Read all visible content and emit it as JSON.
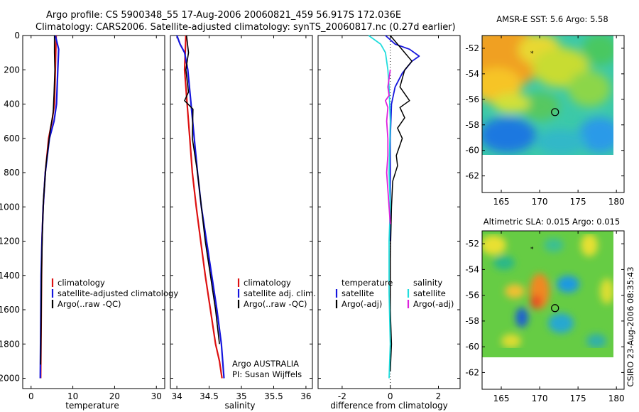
{
  "header": {
    "line1": "Argo profile: CS 5900348_55 17-Aug-2006 20060821_459 56.917S 172.036E",
    "line2": "Climatology: CARS2006. Satellite-adjusted climatology: synTS_20060817.nc (0.27d earlier)"
  },
  "side_stamp": "CSIRO 23-Aug-2006 08:35:43",
  "chart_data": [
    {
      "id": "temperature",
      "type": "line",
      "xlabel": "temperature",
      "xlim": [
        -2,
        32
      ],
      "ylim": [
        0,
        2060
      ],
      "xticks": [
        0,
        10,
        20,
        30
      ],
      "yticks": [
        0,
        200,
        400,
        600,
        800,
        1000,
        1200,
        1400,
        1600,
        1800,
        2000
      ],
      "legend": [
        "climatology",
        "satellite-adjusted climatology",
        "Argo(..raw -QC)"
      ],
      "series": [
        {
          "name": "climatology",
          "color": "#dd1111",
          "width": 2.2,
          "x": [
            6.0,
            5.9,
            5.8,
            5.6,
            5.0,
            4.2,
            3.4,
            2.9,
            2.6,
            2.5,
            2.4,
            2.3
          ],
          "y": [
            0,
            100,
            200,
            400,
            500,
            600,
            800,
            1000,
            1200,
            1400,
            1700,
            2000
          ]
        },
        {
          "name": "satellite-adjusted climatology",
          "color": "#1515dd",
          "width": 2.2,
          "x": [
            5.8,
            6.6,
            6.4,
            6.1,
            5.5,
            4.4,
            3.4,
            2.9,
            2.6,
            2.4,
            2.3,
            2.2
          ],
          "y": [
            0,
            80,
            200,
            400,
            500,
            600,
            800,
            1000,
            1200,
            1400,
            1700,
            2000
          ]
        },
        {
          "name": "Argo(..raw -QC)",
          "color": "#000000",
          "width": 1.6,
          "x": [
            5.6,
            5.6,
            5.7,
            5.5,
            5.3,
            4.6,
            3.6,
            3.0,
            2.7,
            2.5,
            2.4,
            2.3
          ],
          "y": [
            0,
            100,
            200,
            340,
            450,
            550,
            750,
            950,
            1150,
            1400,
            1700,
            1920
          ]
        }
      ]
    },
    {
      "id": "salinity",
      "type": "line",
      "xlabel": "salinity",
      "xlim": [
        33.9,
        36.1
      ],
      "ylim": [
        0,
        2060
      ],
      "xticks": [
        34,
        34.5,
        35,
        35.5,
        36
      ],
      "legend": [
        "climatology",
        "satellite adj. clim.",
        "Argo(..raw -QC)"
      ],
      "annotations": [
        "Argo AUSTRALIA",
        "PI: Susan Wijffels"
      ],
      "series": [
        {
          "name": "climatology",
          "color": "#dd1111",
          "width": 2.2,
          "x": [
            34.14,
            34.12,
            34.16,
            34.2,
            34.24,
            34.3,
            34.37,
            34.44,
            34.52,
            34.6,
            34.66,
            34.7
          ],
          "y": [
            0,
            200,
            400,
            600,
            800,
            1000,
            1200,
            1400,
            1600,
            1800,
            1900,
            2000
          ]
        },
        {
          "name": "satellite adj. clim.",
          "color": "#1515dd",
          "width": 2.2,
          "x": [
            34.0,
            34.05,
            34.12,
            34.17,
            34.22,
            34.27,
            34.32,
            34.38,
            34.46,
            34.54,
            34.62,
            34.69,
            34.73
          ],
          "y": [
            0,
            50,
            100,
            200,
            400,
            600,
            800,
            1000,
            1200,
            1400,
            1600,
            1800,
            2000
          ]
        },
        {
          "name": "Argo(..raw -QC)",
          "color": "#000000",
          "width": 1.6,
          "x": [
            34.15,
            34.18,
            34.14,
            34.18,
            34.12,
            34.25,
            34.24,
            34.32,
            34.38,
            34.44,
            34.52,
            34.6,
            34.66
          ],
          "y": [
            0,
            100,
            200,
            330,
            380,
            430,
            600,
            800,
            1000,
            1200,
            1400,
            1600,
            1800
          ]
        }
      ]
    },
    {
      "id": "difference",
      "type": "line",
      "xlabel": "difference from climatology",
      "xlim": [
        -3.0,
        2.9
      ],
      "ylim": [
        0,
        2060
      ],
      "xticks": [
        -2,
        0,
        2
      ],
      "legend_temperature": [
        "temperature",
        "satellite",
        "Argo(-adj)"
      ],
      "legend_salinity": [
        "salinity",
        "satellite",
        "Argo(-adj)"
      ],
      "series": [
        {
          "name": "temperature satellite",
          "color": "#1515dd",
          "width": 1.8,
          "x": [
            -0.2,
            0.2,
            0.8,
            1.2,
            0.9,
            0.5,
            0.2,
            0.05,
            0,
            0,
            0
          ],
          "y": [
            0,
            50,
            80,
            120,
            150,
            220,
            300,
            400,
            600,
            900,
            1200
          ]
        },
        {
          "name": "temperature Argo(-adj)",
          "color": "#000000",
          "width": 1.5,
          "x": [
            0.0,
            0.3,
            0.6,
            0.9,
            0.6,
            0.4,
            0.8,
            0.4,
            0.6,
            0.3,
            0.5,
            0.25,
            0.3,
            0.1,
            0.05,
            0.0,
            0.0,
            0.05,
            0.0
          ],
          "y": [
            0,
            50,
            100,
            150,
            200,
            300,
            380,
            420,
            480,
            540,
            600,
            700,
            760,
            850,
            1000,
            1300,
            1600,
            1800,
            1960
          ]
        },
        {
          "name": "salinity satellite",
          "color": "#22dddd",
          "width": 1.8,
          "x": [
            -0.9,
            -0.4,
            -0.2,
            -0.1,
            -0.05,
            0.0,
            -0.05,
            0.0,
            -0.05,
            -0.05,
            0.0,
            -0.05
          ],
          "y": [
            0,
            50,
            100,
            200,
            300,
            500,
            800,
            1000,
            1200,
            1500,
            1800,
            2000
          ]
        },
        {
          "name": "salinity Argo(-adj)",
          "color": "#dd22dd",
          "width": 1.8,
          "x": [
            0.0,
            -0.1,
            -0.05,
            -0.2,
            -0.1,
            -0.15,
            -0.1,
            -0.1,
            -0.15,
            -0.1,
            -0.05,
            0.0
          ],
          "y": [
            200,
            300,
            350,
            380,
            420,
            500,
            600,
            700,
            800,
            900,
            1000,
            1100
          ]
        }
      ]
    },
    {
      "id": "sst_map",
      "type": "heatmap",
      "title": "AMSR-E SST: 5.6  Argo: 5.58",
      "xlim": [
        162.5,
        181
      ],
      "ylim": [
        -63.3,
        -51
      ],
      "xticks": [
        165,
        170,
        175,
        180
      ],
      "yticks": [
        -52,
        -54,
        -56,
        -58,
        -60,
        -62
      ],
      "argo_marker": [
        172,
        -57
      ]
    },
    {
      "id": "sla_map",
      "type": "heatmap",
      "title": "Altimetric SLA: 0.015  Argo: 0.015",
      "xlim": [
        162.5,
        181
      ],
      "ylim": [
        -63.3,
        -51
      ],
      "xticks": [
        165,
        170,
        175,
        180
      ],
      "yticks": [
        -52,
        -54,
        -56,
        -58,
        -60,
        -62
      ],
      "argo_marker": [
        172,
        -57
      ]
    }
  ]
}
